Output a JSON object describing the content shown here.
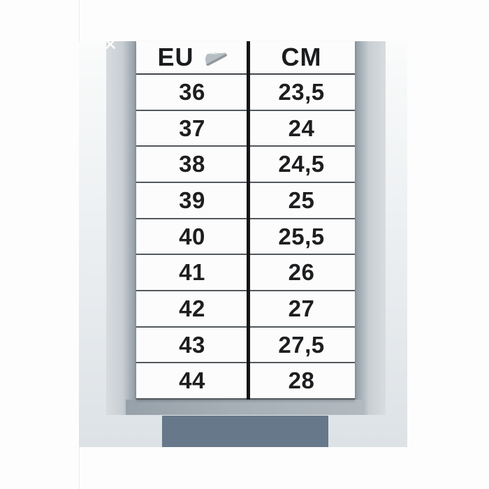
{
  "lightbox": {
    "close_label": "✕"
  },
  "chart_data": {
    "type": "table",
    "columns": [
      "EU",
      "CM"
    ],
    "header_icon": "sneaker-icon",
    "rows": [
      [
        "36",
        "23,5"
      ],
      [
        "37",
        "24"
      ],
      [
        "38",
        "24,5"
      ],
      [
        "39",
        "25"
      ],
      [
        "40",
        "25,5"
      ],
      [
        "41",
        "26"
      ],
      [
        "42",
        "27"
      ],
      [
        "43",
        "27,5"
      ],
      [
        "44",
        "28"
      ]
    ]
  },
  "colors": {
    "page_background": "#fdfdfd",
    "photo_background_top": "#fafbfb",
    "photo_background_bottom": "#dde2e6",
    "pillar_dark": "#8c97a0",
    "pillar_light": "#d8dcdf",
    "table_background": "#fcfcfd",
    "row_line": "#53585c",
    "column_divider": "#151515",
    "text": "#1d1e1f",
    "shadow_band": "#a6afb6",
    "stand_base": "#66788a",
    "close_icon": "#ffffff"
  }
}
